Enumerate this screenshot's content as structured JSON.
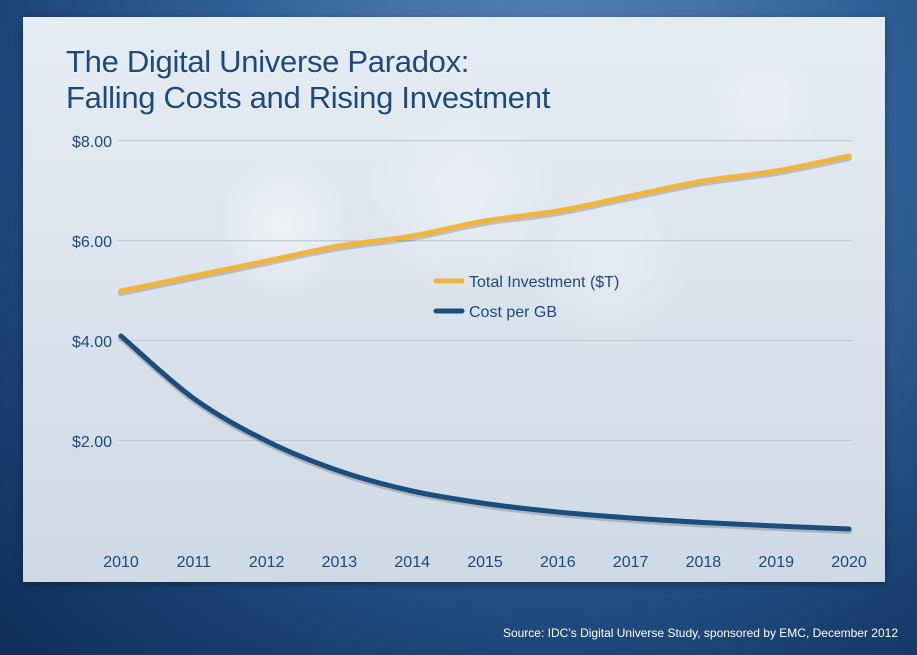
{
  "title_line1": "The Digital Universe Paradox:",
  "title_line2": "Falling Costs and Rising Investment",
  "source": "Source: IDC’s Digital Universe Study, sponsored by EMC, December 2012",
  "colors": {
    "investment": "#f2b53a",
    "cost": "#1b4d7f",
    "tick_text": "#1b4a80",
    "grid": "#a9b7c6"
  },
  "chart_data": {
    "type": "line",
    "title": "The Digital Universe Paradox: Falling Costs and Rising Investment",
    "x": [
      2010,
      2011,
      2012,
      2013,
      2014,
      2015,
      2016,
      2017,
      2018,
      2019,
      2020
    ],
    "x_tick_labels": [
      "2010",
      "2011",
      "2012",
      "2013",
      "2014",
      "2015",
      "2016",
      "2017",
      "2018",
      "2019",
      "2020"
    ],
    "y_tick_labels": [
      "$2.00",
      "$4.00",
      "$6.00",
      "$8.00"
    ],
    "y_ticks": [
      2,
      4,
      6,
      8
    ],
    "ylim": [
      0,
      8
    ],
    "grid": true,
    "legend_position": "center",
    "series": [
      {
        "name": "Total Investment ($T)",
        "values": [
          5.0,
          5.3,
          5.6,
          5.9,
          6.1,
          6.4,
          6.6,
          6.9,
          7.2,
          7.4,
          7.7
        ]
      },
      {
        "name": "Cost per GB",
        "values": [
          4.1,
          2.85,
          2.0,
          1.4,
          1.0,
          0.75,
          0.58,
          0.46,
          0.37,
          0.3,
          0.24
        ]
      }
    ]
  }
}
